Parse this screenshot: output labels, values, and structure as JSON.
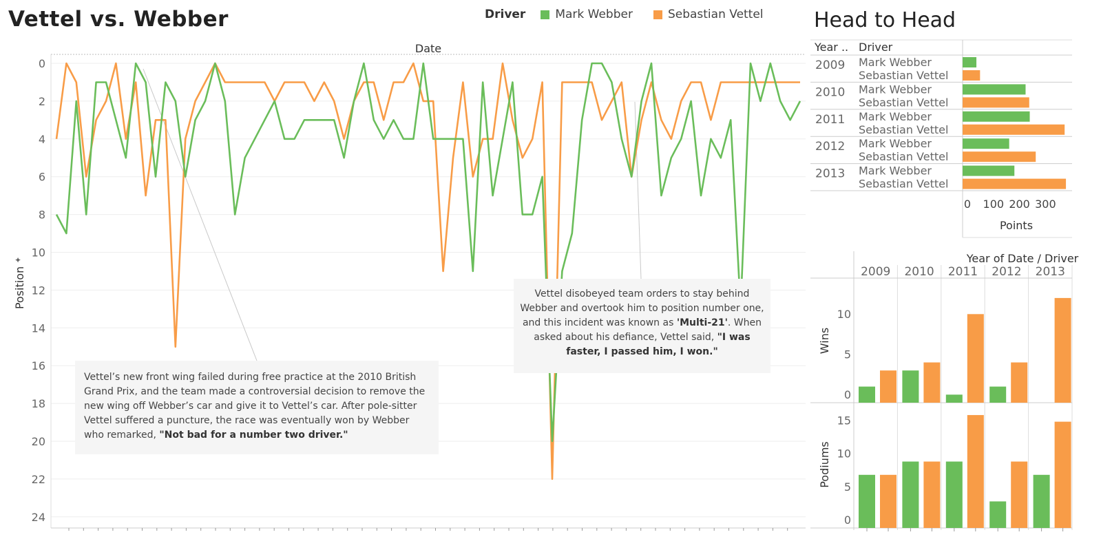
{
  "title": "Vettel vs. Webber",
  "h2h_title": "Head to Head",
  "colors": {
    "webber": "#6abd5a",
    "vettel": "#f89c47"
  },
  "legend": {
    "title": "Driver",
    "items": [
      {
        "label": "Mark Webber",
        "color": "#6abd5a"
      },
      {
        "label": "Sebastian Vettel",
        "color": "#f89c47"
      }
    ]
  },
  "annotations": {
    "wing": {
      "text": "Vettel’s new front wing failed during free practice at the 2010 British Grand Prix, and the team made a controversial decision to remove the new wing off Webber’s car and give it to Vettel’s car. After pole-sitter Vettel suffered a puncture, the race was eventually won by Webber who remarked, ",
      "quote": "\"Not bad for a number two driver.\""
    },
    "multi21": {
      "text1": "Vettel disobeyed team orders to stay behind Webber and overtook him to position number one, and this incident was known as ",
      "bold1": "'Multi-21'",
      "text2": ". When asked about his defiance, Vettel said, ",
      "quote": "\"I was faster, I passed him, I won.\""
    }
  },
  "chart_data": [
    {
      "type": "line",
      "x_label": "Date",
      "y_label": "Position",
      "ylim": [
        0,
        24
      ],
      "y_reversed": true,
      "y_ticks": [
        0,
        2,
        4,
        6,
        8,
        10,
        12,
        14,
        16,
        18,
        20,
        22,
        24
      ],
      "series": [
        {
          "name": "Mark Webber",
          "color": "#6abd5a",
          "values": [
            8,
            9,
            2,
            8,
            1,
            1,
            3,
            5,
            0,
            1,
            6,
            1,
            2,
            6,
            3,
            2,
            0,
            2,
            8,
            5,
            4,
            3,
            2,
            4,
            4,
            3,
            3,
            3,
            3,
            5,
            2,
            0,
            3,
            4,
            3,
            4,
            4,
            0,
            4,
            4,
            4,
            4,
            11,
            1,
            7,
            4,
            1,
            8,
            8,
            6,
            20,
            11,
            9,
            3,
            0,
            0,
            1,
            4,
            6,
            2,
            0,
            7,
            5,
            4,
            2,
            7,
            4,
            5,
            3,
            13,
            0,
            2,
            0,
            2,
            3,
            2
          ]
        },
        {
          "name": "Sebastian Vettel",
          "color": "#f89c47",
          "values": [
            4,
            0,
            1,
            6,
            3,
            2,
            0,
            4,
            1,
            7,
            3,
            3,
            15,
            4,
            2,
            1,
            0,
            1,
            1,
            1,
            1,
            1,
            2,
            1,
            1,
            1,
            2,
            1,
            2,
            4,
            2,
            1,
            1,
            3,
            1,
            1,
            0,
            2,
            2,
            11,
            5,
            1,
            6,
            4,
            4,
            0,
            3,
            5,
            4,
            1,
            22,
            1,
            1,
            1,
            1,
            3,
            2,
            1,
            6,
            3,
            1,
            3,
            4,
            2,
            1,
            1,
            3,
            1,
            1,
            1,
            1,
            1,
            1,
            1,
            1,
            1
          ]
        }
      ]
    },
    {
      "type": "bar",
      "title": "Head to Head",
      "x_label": "Points",
      "x_ticks": [
        "0",
        "100",
        "200",
        "300"
      ],
      "headers": [
        "Year ..",
        "Driver"
      ],
      "years": [
        "2009",
        "2010",
        "2011",
        "2012",
        "2013"
      ],
      "drivers": [
        "Mark Webber",
        "Sebastian Vettel"
      ],
      "series": [
        {
          "name": "Mark Webber",
          "values": [
            53,
            242,
            258,
            179,
            199
          ]
        },
        {
          "name": "Sebastian Vettel",
          "values": [
            67,
            256,
            392,
            281,
            397
          ]
        }
      ]
    },
    {
      "type": "bar",
      "title": "Year of Date  /  Driver",
      "years": [
        "2009",
        "2010",
        "2011",
        "2012",
        "2013"
      ],
      "panels": [
        {
          "label": "Wins",
          "ylim": [
            0,
            14
          ],
          "ticks": [
            "0",
            "5",
            "10"
          ],
          "series": [
            {
              "name": "Mark Webber",
              "values": [
                2,
                4,
                1,
                2,
                0
              ]
            },
            {
              "name": "Sebastian Vettel",
              "values": [
                4,
                5,
                11,
                5,
                13
              ]
            }
          ]
        },
        {
          "label": "Podiums",
          "ylim": [
            0,
            18
          ],
          "ticks": [
            "0",
            "5",
            "10",
            "15"
          ],
          "series": [
            {
              "name": "Mark Webber",
              "values": [
                8,
                10,
                10,
                4,
                8
              ]
            },
            {
              "name": "Sebastian Vettel",
              "values": [
                8,
                10,
                17,
                10,
                16
              ]
            }
          ]
        }
      ]
    }
  ]
}
